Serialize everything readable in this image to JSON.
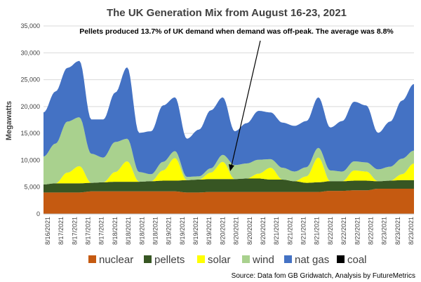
{
  "chart_data": {
    "type": "area",
    "stacked": true,
    "title": "The UK Generation Mix from August 16-23, 2021",
    "annotation": "Pellets produced 13.7% of UK demand when demand was off-peak.  The average was 8.8%",
    "source": "Source: Data fom GB Gridwatch, Analysis by FutureMetrics",
    "ylabel": "Megawatts",
    "xlabel": "",
    "ylim": [
      0,
      35000
    ],
    "yticks": [
      0,
      5000,
      10000,
      15000,
      20000,
      25000,
      30000,
      35000
    ],
    "ytick_labels": [
      "0",
      "5,000",
      "10,000",
      "15,000",
      "20,000",
      "25,000",
      "30,000",
      "35,000"
    ],
    "grid": true,
    "legend_position": "bottom",
    "x_tick_labels": [
      "8/16/2021",
      "8/17/2021",
      "8/17/2021",
      "8/17/2021",
      "8/17/2021",
      "8/18/2021",
      "8/18/2021",
      "8/18/2021",
      "8/18/2021",
      "8/19/2021",
      "8/19/2021",
      "8/19/2021",
      "8/19/2021",
      "8/20/2021",
      "8/20/2021",
      "8/20/2021",
      "8/20/2021",
      "8/21/2021",
      "8/21/2021",
      "8/21/2021",
      "8/21/2021",
      "8/22/2021",
      "8/22/2021",
      "8/22/2021",
      "8/22/2021",
      "8/23/2021",
      "8/23/2021",
      "8/23/2021"
    ],
    "x_start": "8/16/2021",
    "x_end": "8/23/2021",
    "x": [
      0,
      0.25,
      0.5,
      0.75,
      1,
      1.25,
      1.5,
      1.75,
      2,
      2.25,
      2.5,
      2.75,
      3,
      3.25,
      3.5,
      3.75,
      4,
      4.25,
      4.5,
      4.75,
      5,
      5.25,
      5.5,
      5.75,
      6,
      6.25,
      6.5,
      6.75,
      7,
      7.25,
      7.5,
      7.75
    ],
    "series": [
      {
        "name": "nuclear",
        "color": "#c55a11",
        "values": [
          4000,
          4000,
          4000,
          4000,
          4200,
          4200,
          4200,
          4200,
          4200,
          4200,
          4200,
          4200,
          4000,
          4000,
          4100,
          4100,
          4100,
          4100,
          4100,
          4100,
          4100,
          4100,
          4100,
          4100,
          4300,
          4300,
          4400,
          4400,
          4700,
          4700,
          4700,
          4700
        ]
      },
      {
        "name": "pellets",
        "color": "#375623",
        "values": [
          1500,
          1700,
          1700,
          1700,
          1600,
          1700,
          1800,
          1800,
          1800,
          1900,
          2000,
          2000,
          2300,
          2400,
          2400,
          2400,
          2400,
          2500,
          2500,
          2300,
          2300,
          2000,
          1700,
          1800,
          1800,
          1800,
          1800,
          1800,
          1400,
          1500,
          1600,
          1600
        ]
      },
      {
        "name": "solar",
        "color": "#ffff00",
        "values": [
          0,
          0,
          2000,
          3200,
          0,
          0,
          1800,
          3800,
          0,
          0,
          1900,
          4200,
          0,
          0,
          1200,
          3200,
          0,
          0,
          900,
          2200,
          0,
          0,
          1200,
          4600,
          0,
          0,
          1900,
          1700,
          0,
          0,
          1100,
          3100
        ]
      },
      {
        "name": "wind",
        "color": "#a9d18e",
        "values": [
          5200,
          7400,
          9500,
          9100,
          5400,
          4600,
          5600,
          4200,
          1800,
          1300,
          1600,
          1300,
          600,
          600,
          800,
          1300,
          2600,
          2800,
          2600,
          1600,
          2200,
          1800,
          1700,
          1800,
          2000,
          1800,
          1700,
          1700,
          2200,
          2600,
          2900,
          2400
        ]
      },
      {
        "name": "nat gas",
        "color": "#4472c4",
        "values": [
          8200,
          9700,
          10000,
          10500,
          6400,
          7100,
          9200,
          13300,
          7300,
          8000,
          10500,
          10000,
          7100,
          8700,
          10800,
          10700,
          6300,
          7500,
          9100,
          8700,
          8400,
          8500,
          8600,
          9400,
          8000,
          9400,
          11100,
          10600,
          6800,
          8400,
          10800,
          12400
        ]
      },
      {
        "name": "coal",
        "color": "#000000",
        "values": [
          0,
          0,
          0,
          0,
          0,
          0,
          0,
          0,
          0,
          0,
          0,
          0,
          0,
          0,
          0,
          0,
          0,
          0,
          0,
          0,
          0,
          0,
          0,
          0,
          0,
          0,
          0,
          0,
          0,
          0,
          0,
          0
        ]
      }
    ]
  }
}
